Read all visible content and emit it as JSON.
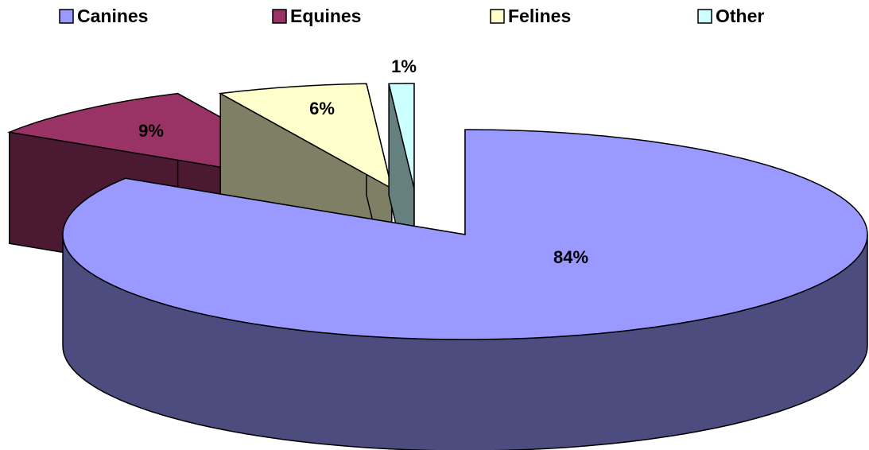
{
  "chart_data": {
    "type": "pie",
    "categories": [
      "Canines",
      "Equines",
      "Felines",
      "Other"
    ],
    "values": [
      84,
      9,
      6,
      1
    ],
    "value_labels": [
      "84%",
      "9%",
      "6%",
      "1%"
    ],
    "colors": [
      "#9999ff",
      "#993366",
      "#ffffcc",
      "#ccffff"
    ],
    "legend": "top"
  }
}
